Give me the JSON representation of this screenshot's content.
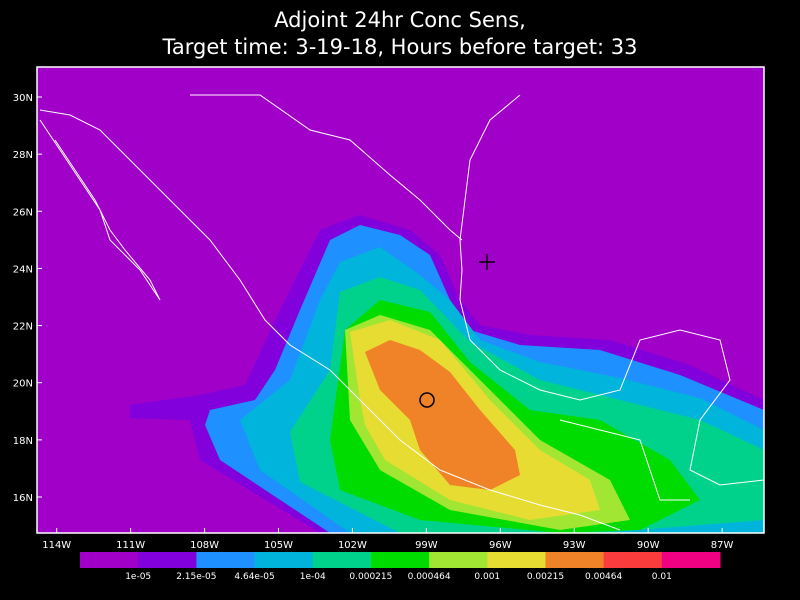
{
  "map": {
    "title": [
      "Adjoint 24hr Conc Sens,",
      "Target time: 3-19-18, Hours before target: 33"
    ],
    "lon_range": [
      -114.8,
      -85.3
    ],
    "lat_range": [
      14.74,
      31.05
    ],
    "lon_ticks": [
      {
        "value": -114,
        "label": "114W"
      },
      {
        "value": -111,
        "label": "111W"
      },
      {
        "value": -108,
        "label": "108W"
      },
      {
        "value": -105,
        "label": "105W"
      },
      {
        "value": -102,
        "label": "102W"
      },
      {
        "value": -99,
        "label": "99W"
      },
      {
        "value": -96,
        "label": "96W"
      },
      {
        "value": -93,
        "label": "93W"
      },
      {
        "value": -90,
        "label": "90W"
      },
      {
        "value": -87,
        "label": "87W"
      }
    ],
    "lat_ticks": [
      {
        "value": 16,
        "label": "16N"
      },
      {
        "value": 18,
        "label": "18N"
      },
      {
        "value": 20,
        "label": "20N"
      },
      {
        "value": 22,
        "label": "22N"
      },
      {
        "value": 24,
        "label": "24N"
      },
      {
        "value": 26,
        "label": "26N"
      },
      {
        "value": 28,
        "label": "28N"
      },
      {
        "value": 30,
        "label": "30N"
      }
    ],
    "colorbar": {
      "colors": [
        "#a000c8",
        "#8200dc",
        "#1e90ff",
        "#00b4dc",
        "#00d28c",
        "#00dc00",
        "#a0e632",
        "#e6dc32",
        "#f08228",
        "#fa3c3c",
        "#f00082"
      ],
      "levels": [
        {
          "value": 1e-05,
          "label": "1e-05"
        },
        {
          "value": 2.15e-05,
          "label": "2.15e-05"
        },
        {
          "value": 4.64e-05,
          "label": "4.64e-05"
        },
        {
          "value": 0.0001,
          "label": "1e-04"
        },
        {
          "value": 0.000215,
          "label": "0.000215"
        },
        {
          "value": 0.000464,
          "label": "0.000464"
        },
        {
          "value": 0.001,
          "label": "0.001"
        },
        {
          "value": 0.00215,
          "label": "0.00215"
        },
        {
          "value": 0.00464,
          "label": "0.00464"
        },
        {
          "value": 0.01,
          "label": "0.01"
        }
      ]
    }
  }
}
